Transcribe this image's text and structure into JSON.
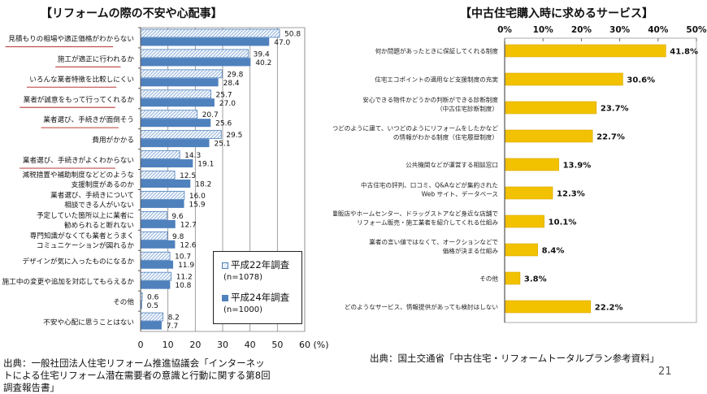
{
  "page_number": "21",
  "chart_data": [
    {
      "type": "bar",
      "orientation": "horizontal",
      "title": "【リフォームの際の不安や心配事】",
      "xlabel": "(%)",
      "xlim": [
        0,
        60
      ],
      "xticks": [
        "0",
        "10",
        "20",
        "30",
        "40",
        "50",
        "60"
      ],
      "grid": true,
      "legend_position": "bottom-right",
      "categories": [
        [
          "見積もりの相場や適正価格がわからない"
        ],
        [
          "施工が適正に行われるか"
        ],
        [
          "いろんな業者特徴を比較しにくい"
        ],
        [
          "業者が誠意をもって行ってくれるか"
        ],
        [
          "業者選び、手続きが面倒そう"
        ],
        [
          "費用がかかる"
        ],
        [
          "業者選び、手続きがよくわからない"
        ],
        [
          "減税措置や補助制度などどのような",
          "支援制度があるのか"
        ],
        [
          "業者選び、手続きについて",
          "相談できる人がいない"
        ],
        [
          "予定していた箇所以上に業者に",
          "勧められると断れない"
        ],
        [
          "専門知識がなくても業者とうまく",
          "コミュニケーションが図れるか"
        ],
        [
          "デザインが気に入ったものになるか"
        ],
        [
          "施工中の変更や追加を対応してもらえるか"
        ],
        [
          "その他"
        ],
        [
          "不安や心配に思うことはない"
        ]
      ],
      "highlighted": [
        true,
        true,
        true,
        true,
        true,
        false,
        true,
        false,
        false,
        false,
        false,
        false,
        false,
        false,
        false
      ],
      "series": [
        {
          "name": "平成22年調査",
          "sample": "(n=1078)",
          "color": "#4f81bd",
          "pattern": "hatched",
          "values": [
            50.8,
            39.4,
            29.8,
            25.7,
            20.7,
            29.5,
            14.3,
            12.5,
            16.0,
            9.6,
            9.8,
            10.7,
            11.2,
            0.6,
            8.2
          ]
        },
        {
          "name": "平成24年調査",
          "sample": "(n=1000)",
          "color": "#4f81bd",
          "pattern": "solid",
          "values": [
            47.0,
            40.2,
            28.4,
            27.0,
            25.6,
            25.1,
            19.1,
            18.2,
            15.9,
            12.7,
            12.6,
            11.9,
            10.8,
            0.5,
            7.7
          ]
        }
      ],
      "highlight_color": "#c0504d"
    },
    {
      "type": "bar",
      "orientation": "horizontal",
      "title": "【中古住宅購入時に求めるサービス】",
      "xlim": [
        0,
        50
      ],
      "xticks": [
        "0%",
        "10%",
        "20%",
        "30%",
        "40%",
        "50%"
      ],
      "grid": false,
      "color": "#f2c200",
      "categories": [
        [
          "何か問題があったときに保証してくれる制度"
        ],
        [
          "住宅エコポイントの適用など支援制度の充実"
        ],
        [
          "安心できる物件かどうかの判断ができる診断制度",
          "（中古住宅診断制度）"
        ],
        [
          "いつどのように建て、いつどのようにリフォームをしたかなど",
          "の情報がわかる制度（住宅履歴制度）"
        ],
        [
          "公共機関などが運営する相談窓口"
        ],
        [
          "中古住宅の評判、口コミ、Q&Aなどが集約された",
          "Web サイト、データベース"
        ],
        [
          "家電量販店やホームセンター、ドラッグストアなど身近な店舗で",
          "リフォーム販売・施工業者を紹介してくれる仕組み"
        ],
        [
          "業者の言い値ではなくて、オークションなどで",
          "価格が決まる仕組み"
        ],
        [
          "その他"
        ],
        [
          "どのようなサービス、情報提供があっても検討はしない"
        ]
      ],
      "values": [
        41.8,
        30.6,
        23.7,
        22.7,
        13.9,
        12.3,
        10.1,
        8.4,
        3.8,
        22.2
      ],
      "value_labels": [
        "41.8%",
        "30.6%",
        "23.7%",
        "22.7%",
        "13.9%",
        "12.3%",
        "10.1%",
        "8.4%",
        "3.8%",
        "22.2%"
      ]
    }
  ],
  "left_source": "出典：一般社団法人住宅リフォーム推進協議会「インターネットによる住宅リフォーム潜在需要者の意識と行動に関する第8回調査報告書」",
  "right_source": "出典：国土交通省「中古住宅・リフォームトータルプラン参考資料」"
}
